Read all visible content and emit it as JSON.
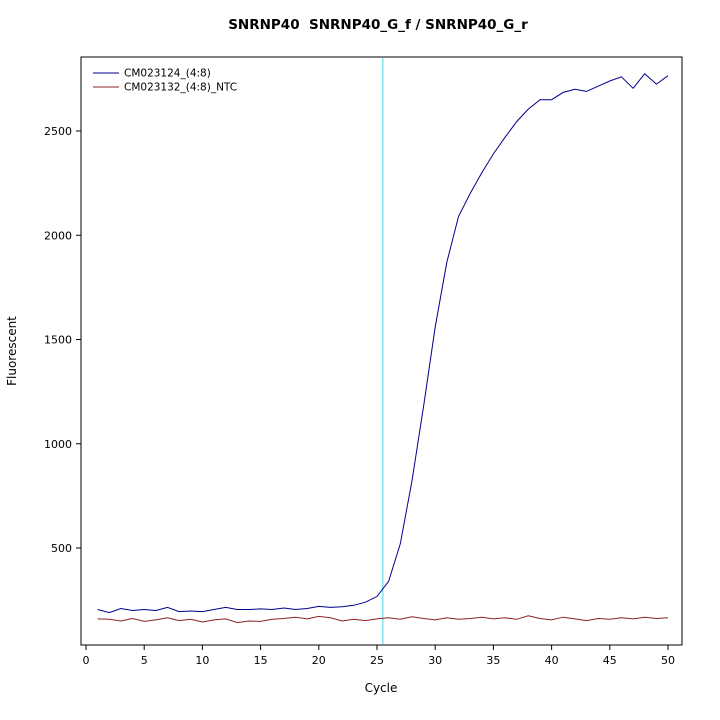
{
  "chart_data": {
    "type": "line",
    "title": "SNRNP40  SNRNP40_G_f / SNRNP40_G_r",
    "xlabel": "Cycle",
    "ylabel": "Fluorescent",
    "x_ticks": [
      0,
      5,
      10,
      15,
      20,
      25,
      30,
      35,
      40,
      45,
      50
    ],
    "y_ticks": [
      500,
      1000,
      1500,
      2000,
      2500
    ],
    "xlim": [
      0,
      51
    ],
    "ylim": [
      35,
      2855
    ],
    "grid": false,
    "threshold_line": {
      "orientation": "vertical",
      "x": 25.5,
      "color": "#7FE6F2"
    },
    "x": [
      1,
      2,
      3,
      4,
      5,
      6,
      7,
      8,
      9,
      10,
      11,
      12,
      13,
      14,
      15,
      16,
      17,
      18,
      19,
      20,
      21,
      22,
      23,
      24,
      25,
      26,
      27,
      28,
      29,
      30,
      31,
      32,
      33,
      34,
      35,
      36,
      37,
      38,
      39,
      40,
      41,
      42,
      43,
      44,
      45,
      46,
      47,
      48,
      49,
      50
    ],
    "series": [
      {
        "name": "CM023124_(4:8)",
        "color": "#00008B",
        "values": [
          205,
          190,
          210,
          200,
          205,
          200,
          215,
          195,
          198,
          195,
          205,
          215,
          205,
          205,
          208,
          205,
          212,
          205,
          210,
          220,
          215,
          218,
          225,
          240,
          268,
          340,
          520,
          820,
          1180,
          1560,
          1870,
          2090,
          2200,
          2300,
          2390,
          2470,
          2545,
          2605,
          2650,
          2650,
          2685,
          2700,
          2690,
          2715,
          2740,
          2760,
          2705,
          2775,
          2725,
          2765
        ]
      },
      {
        "name": "CM023132_(4:8)_NTC",
        "color": "#8B2323",
        "values": [
          160,
          158,
          150,
          162,
          148,
          155,
          165,
          152,
          158,
          145,
          155,
          160,
          142,
          150,
          148,
          158,
          162,
          168,
          160,
          172,
          165,
          150,
          158,
          152,
          160,
          165,
          158,
          170,
          162,
          155,
          165,
          158,
          162,
          168,
          160,
          165,
          158,
          175,
          162,
          155,
          168,
          160,
          152,
          162,
          158,
          165,
          160,
          168,
          162,
          165
        ]
      }
    ],
    "legend": {
      "position": "top-left",
      "entries": [
        "CM023124_(4:8)",
        "CM023132_(4:8)_NTC"
      ]
    }
  }
}
